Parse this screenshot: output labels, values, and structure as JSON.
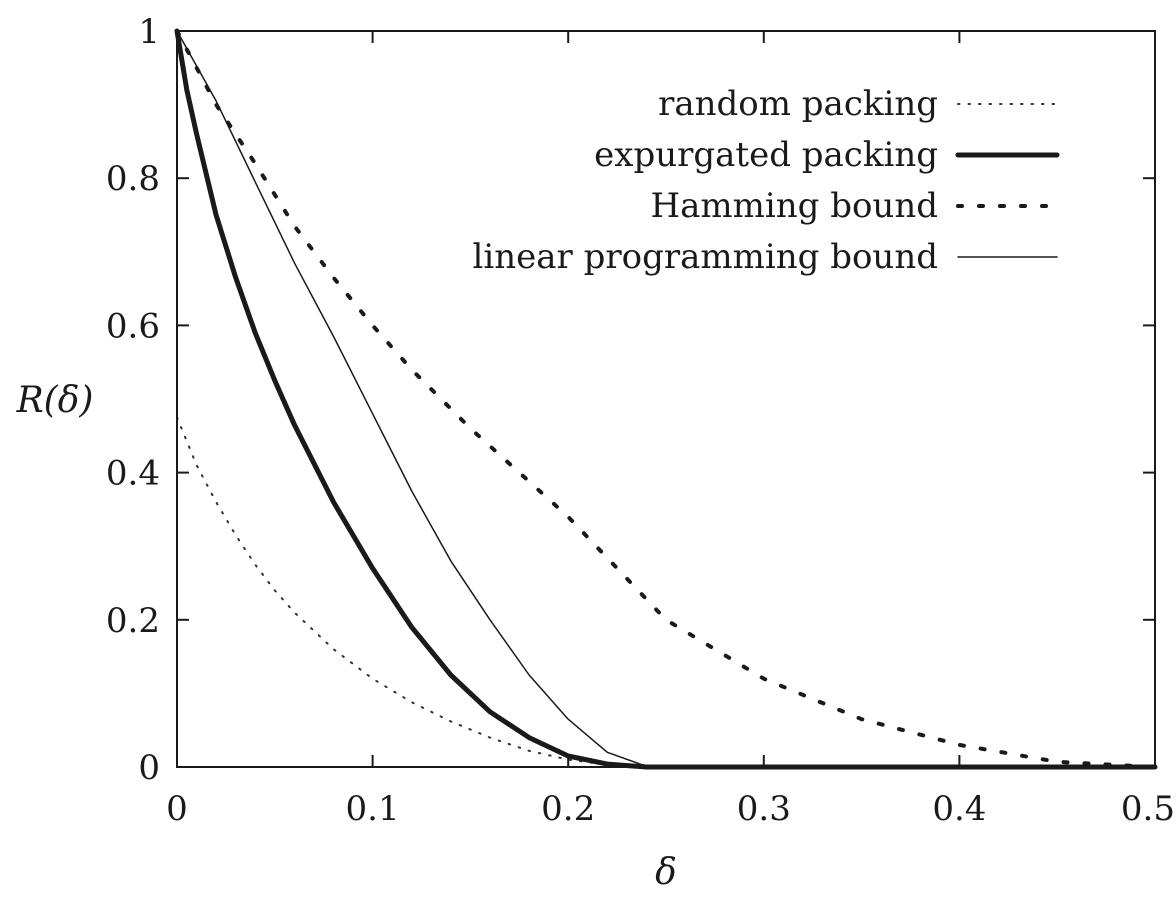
{
  "chart_data": {
    "type": "line",
    "title": "",
    "xlabel": "δ",
    "ylabel": "R(δ)",
    "xlim": [
      0,
      0.5
    ],
    "ylim": [
      0,
      1
    ],
    "xticks": [
      {
        "value": 0,
        "label": "0"
      },
      {
        "value": 0.1,
        "label": "0.1"
      },
      {
        "value": 0.2,
        "label": "0.2"
      },
      {
        "value": 0.3,
        "label": "0.3"
      },
      {
        "value": 0.4,
        "label": "0.4"
      },
      {
        "value": 0.5,
        "label": "0.5"
      }
    ],
    "yticks": [
      {
        "value": 0,
        "label": "0"
      },
      {
        "value": 0.2,
        "label": "0.2"
      },
      {
        "value": 0.4,
        "label": "0.4"
      },
      {
        "value": 0.6,
        "label": "0.6"
      },
      {
        "value": 0.8,
        "label": "0.8"
      },
      {
        "value": 1,
        "label": "1"
      }
    ],
    "grid": false,
    "legend_position": "top-right",
    "series": [
      {
        "name": "random packing",
        "style": "sparse-dots",
        "x": [
          0,
          0.01,
          0.02,
          0.03,
          0.04,
          0.05,
          0.06,
          0.08,
          0.1,
          0.12,
          0.14,
          0.16,
          0.18,
          0.2,
          0.22,
          0.24,
          0.25,
          0.3,
          0.35,
          0.4,
          0.45,
          0.5
        ],
        "y": [
          0.475,
          0.41,
          0.36,
          0.315,
          0.275,
          0.24,
          0.21,
          0.16,
          0.12,
          0.088,
          0.062,
          0.04,
          0.022,
          0.01,
          0.003,
          0.0,
          0.0,
          0.0,
          0.0,
          0.0,
          0.0,
          0.0
        ]
      },
      {
        "name": "expurgated packing",
        "style": "thick",
        "x": [
          0,
          0.005,
          0.01,
          0.02,
          0.03,
          0.04,
          0.05,
          0.06,
          0.08,
          0.1,
          0.12,
          0.14,
          0.16,
          0.18,
          0.2,
          0.22,
          0.24,
          0.245,
          0.3,
          0.4,
          0.5
        ],
        "y": [
          1.0,
          0.92,
          0.86,
          0.75,
          0.665,
          0.59,
          0.525,
          0.465,
          0.36,
          0.27,
          0.19,
          0.125,
          0.075,
          0.04,
          0.015,
          0.004,
          0.0,
          0.0,
          0.0,
          0.0,
          0.0
        ]
      },
      {
        "name": "Hamming bound",
        "style": "dotted",
        "x": [
          0,
          0.01,
          0.02,
          0.04,
          0.06,
          0.08,
          0.1,
          0.12,
          0.15,
          0.2,
          0.25,
          0.3,
          0.35,
          0.4,
          0.45,
          0.5
        ],
        "y": [
          1.0,
          0.95,
          0.9,
          0.82,
          0.735,
          0.665,
          0.6,
          0.54,
          0.46,
          0.34,
          0.2,
          0.12,
          0.065,
          0.03,
          0.007,
          0.0
        ]
      },
      {
        "name": "linear programming bound",
        "style": "thin",
        "x": [
          0,
          0.02,
          0.04,
          0.06,
          0.08,
          0.1,
          0.12,
          0.14,
          0.16,
          0.18,
          0.2,
          0.22,
          0.24,
          0.245,
          0.3,
          0.4,
          0.5
        ],
        "y": [
          1.0,
          0.905,
          0.795,
          0.685,
          0.585,
          0.48,
          0.375,
          0.28,
          0.2,
          0.125,
          0.065,
          0.02,
          0.001,
          0.0,
          0.0,
          0.0,
          0.0
        ]
      }
    ]
  }
}
